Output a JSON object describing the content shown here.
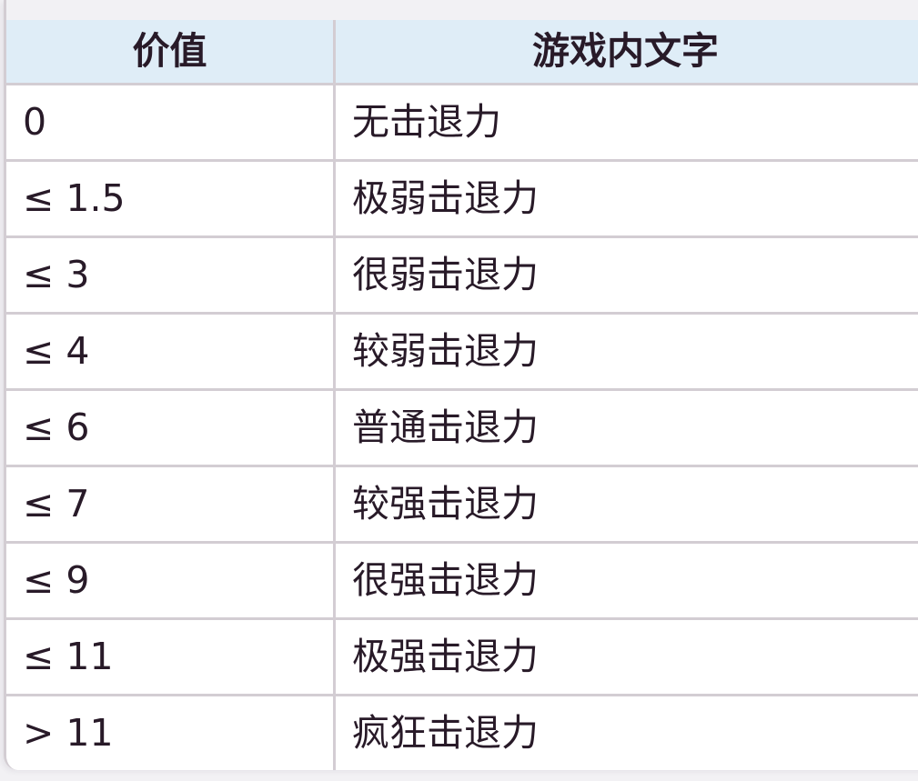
{
  "table": {
    "columns": [
      {
        "label": "价值"
      },
      {
        "label": "游戏内文字"
      }
    ],
    "rows": [
      {
        "value": "0",
        "text": "无击退力"
      },
      {
        "value": "≤ 1.5",
        "text": "极弱击退力"
      },
      {
        "value": "≤ 3",
        "text": "很弱击退力"
      },
      {
        "value": "≤ 4",
        "text": "较弱击退力"
      },
      {
        "value": "≤ 6",
        "text": "普通击退力"
      },
      {
        "value": "≤ 7",
        "text": "较强击退力"
      },
      {
        "value": "≤ 9",
        "text": "很强击退力"
      },
      {
        "value": "≤ 11",
        "text": "极强击退力"
      },
      {
        "value": "> 11",
        "text": "疯狂击退力"
      }
    ],
    "colors": {
      "page_bg": "#f2f1f4",
      "header_bg": "#dfedf7",
      "border": "#d3cdd3",
      "row_bg": "#ffffff",
      "text": "#281a28"
    }
  }
}
